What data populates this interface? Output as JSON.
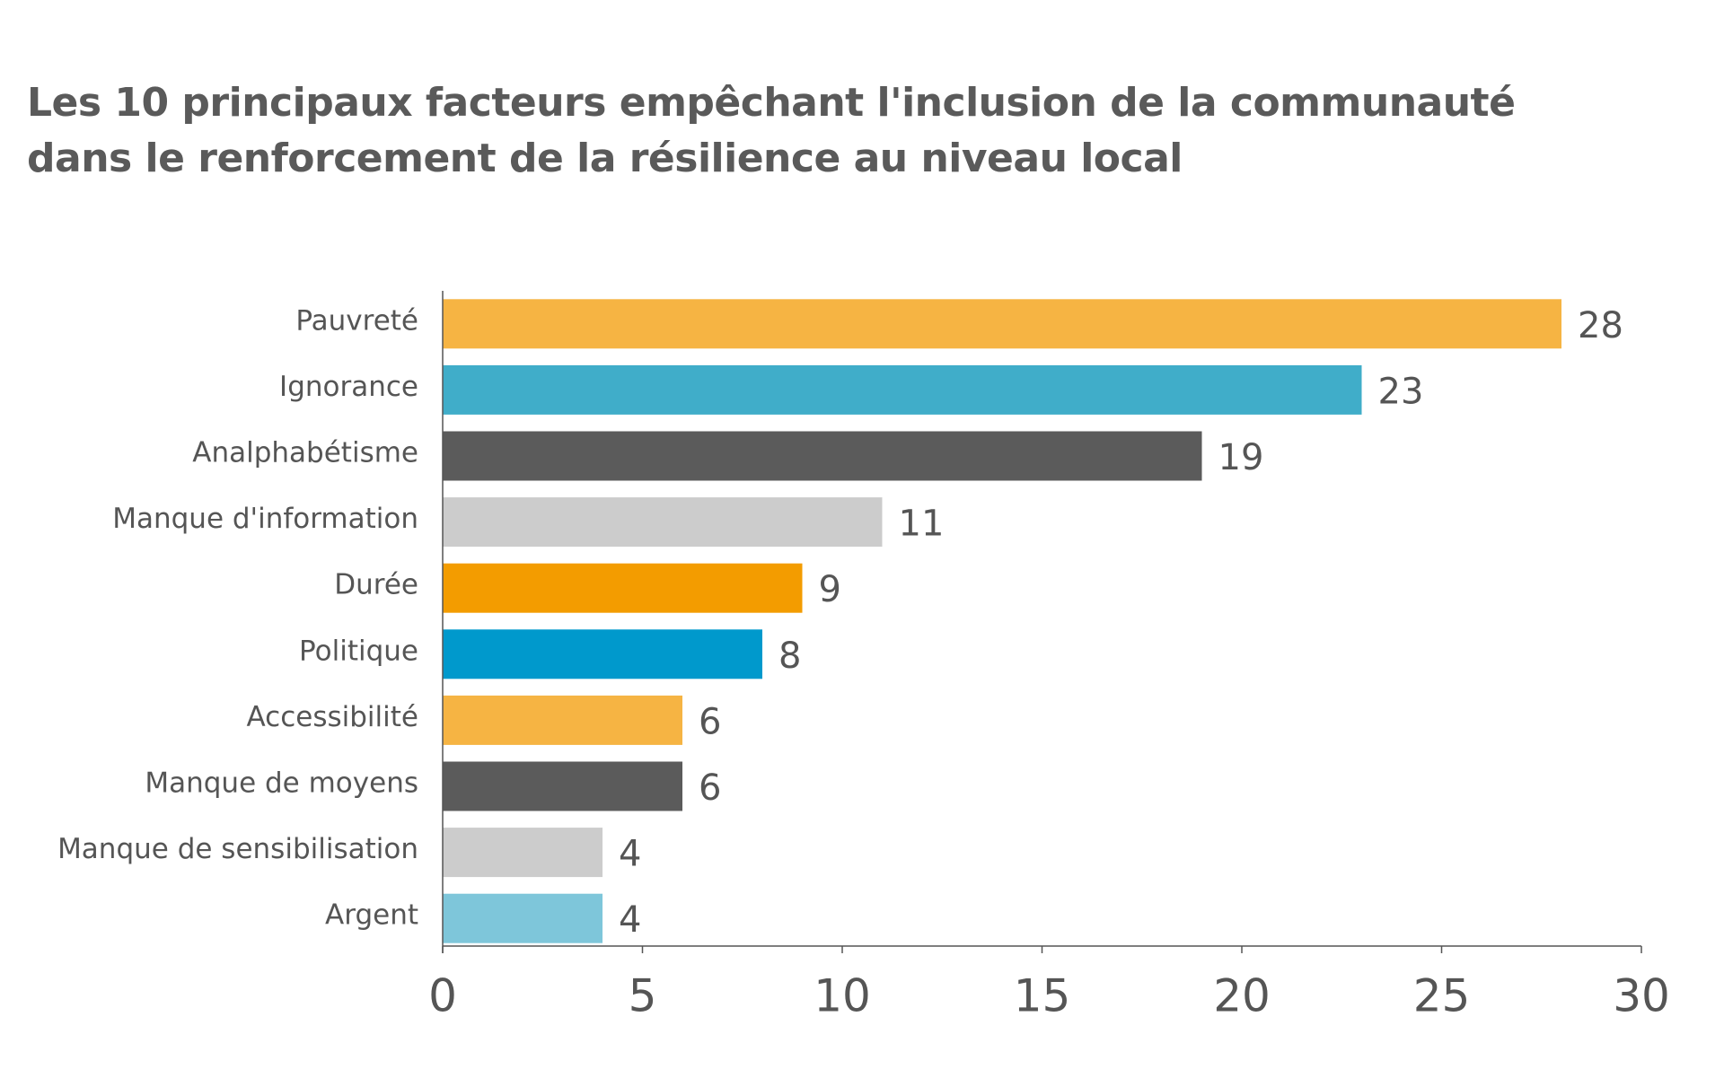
{
  "chart_data": {
    "type": "bar",
    "orientation": "horizontal",
    "title_lines": [
      "Les 10 principaux facteurs empêchant l'inclusion de la communauté",
      "dans le renforcement de la résilience au niveau local"
    ],
    "categories": [
      "Pauvreté",
      "Ignorance",
      "Analphabétisme",
      "Manque d'information",
      "Durée",
      "Politique",
      "Accessibilité",
      "Manque de moyens",
      "Manque de sensibilisation",
      "Argent"
    ],
    "values": [
      28,
      23,
      19,
      11,
      9,
      8,
      6,
      6,
      4,
      4
    ],
    "value_labels": [
      "28",
      "23",
      "19",
      "11",
      "9",
      "8",
      "6",
      "6",
      "4",
      "4"
    ],
    "bar_colors": [
      "#f6b443",
      "#40adc9",
      "#5b5b5b",
      "#cccccc",
      "#f39c00",
      "#0099cc",
      "#f6b443",
      "#5b5b5b",
      "#cccccc",
      "#7ec6da"
    ],
    "xlim": [
      0,
      30
    ],
    "xticks": [
      0,
      5,
      10,
      15,
      20,
      25,
      30
    ],
    "xtick_labels": [
      "0",
      "5",
      "10",
      "15",
      "20",
      "25",
      "30"
    ],
    "grid": false,
    "legend": "none"
  }
}
